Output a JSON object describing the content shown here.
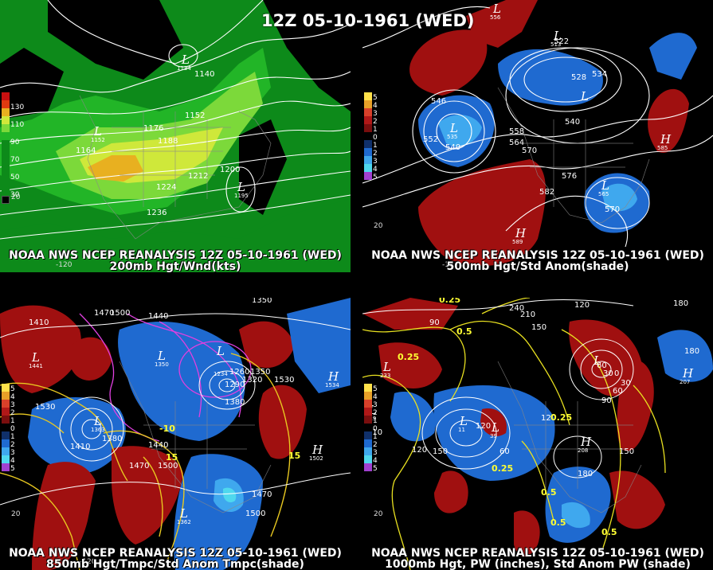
{
  "title": "12Z 05-10-1961 (WED)",
  "panels": [
    {
      "caption_line1": "NOAA NWS NCEP REANALYSIS 12Z 05-10-1961 (WED)",
      "caption_line2": "200mb Hgt/Wnd(kts)",
      "legend_labels": [
        "130",
        "110",
        "90",
        "70",
        "50",
        "30"
      ],
      "contour_labels": [
        "1140",
        "1152",
        "1164",
        "1176",
        "1188",
        "1200",
        "1212",
        "1224",
        "1236"
      ],
      "systems": [
        {
          "type": "L",
          "value": "1134"
        },
        {
          "type": "L",
          "value": "1152"
        },
        {
          "type": "L",
          "value": "1195"
        }
      ],
      "tick_labels": [
        "-120",
        "20"
      ]
    },
    {
      "caption_line1": "NOAA NWS NCEP REANALYSIS 12Z 05-10-1961 (WED)",
      "caption_line2": "500mb Hgt/Std Anom(shade)",
      "legend_labels": [
        "5",
        "4",
        "3",
        "2",
        "1",
        "0",
        "1",
        "2",
        "3",
        "4",
        "5"
      ],
      "contour_labels": [
        "522",
        "528",
        "534",
        "540",
        "546",
        "552",
        "540",
        "558",
        "564",
        "570",
        "576",
        "582",
        "570"
      ],
      "systems": [
        {
          "type": "L",
          "value": "556"
        },
        {
          "type": "L",
          "value": "513"
        },
        {
          "type": "L",
          "value": "522"
        },
        {
          "type": "L",
          "value": "535"
        },
        {
          "type": "H",
          "value": "585"
        },
        {
          "type": "L",
          "value": "565"
        },
        {
          "type": "H",
          "value": "589"
        }
      ],
      "tick_labels": [
        "-120",
        "20"
      ]
    },
    {
      "caption_line1": "NOAA NWS NCEP REANALYSIS 12Z 05-10-1961 (WED)",
      "caption_line2": "850mb Hgt/Tmpc/Std Anom Tmpc(shade)",
      "legend_labels": [
        "5",
        "4",
        "3",
        "2",
        "1",
        "0",
        "1",
        "2",
        "3",
        "4",
        "5"
      ],
      "contour_labels": [
        "1410",
        "1470",
        "1500",
        "1440",
        "1350",
        "1290",
        "1260",
        "1350",
        "1320",
        "1380",
        "1530",
        "1380",
        "1410",
        "1440",
        "1470",
        "1500",
        "1530",
        "1470",
        "1500"
      ],
      "systems": [
        {
          "type": "L",
          "value": "1441"
        },
        {
          "type": "L",
          "value": "1350"
        },
        {
          "type": "L",
          "value": "1234"
        },
        {
          "type": "H",
          "value": "1534"
        },
        {
          "type": "H",
          "value": "1502"
        },
        {
          "type": "L",
          "value": "1363"
        },
        {
          "type": "L",
          "value": "1362"
        }
      ],
      "yellow_labels": [
        "-10",
        "15",
        "15"
      ],
      "tick_labels": [
        "-120",
        "20"
      ]
    },
    {
      "caption_line1": "NOAA NWS NCEP REANALYSIS 12Z 05-10-1961 (WED)",
      "caption_line2": "1000mb Hgt, PW (inches), Std Anom PW (shade)",
      "legend_labels": [
        "5",
        "4",
        "3",
        "2",
        "1",
        "0",
        "1",
        "2",
        "3",
        "4",
        "5"
      ],
      "contour_labels": [
        "240",
        "210",
        "150",
        "120",
        "90",
        "60",
        "30",
        "0",
        "30",
        "60",
        "90",
        "120",
        "180",
        "150",
        "210",
        "120",
        "150",
        "180",
        "60",
        "120",
        "180"
      ],
      "systems": [
        {
          "type": "L",
          "value": "233"
        },
        {
          "type": "L",
          "value": "219"
        },
        {
          "type": "L",
          "value": "11"
        },
        {
          "type": "L",
          "value": "39"
        },
        {
          "type": "H",
          "value": "208"
        },
        {
          "type": "H",
          "value": "207"
        },
        {
          "type": "L",
          "value": "25"
        }
      ],
      "yellow_labels": [
        "0.25",
        "0.5",
        "0.25",
        "0.25",
        "0.5",
        "0.25",
        "0.5",
        "0.5"
      ],
      "tick_labels": [
        "20"
      ]
    }
  ],
  "colors": {
    "wind_30": "#0d8a1a",
    "wind_50": "#22b527",
    "wind_70": "#7cd93a",
    "wind_90": "#cfe83a",
    "wind_110": "#e8b020",
    "anom_pos": "#a01010",
    "anom_neg": "#1f6ad0",
    "anom_neg_strong": "#3fa8ee",
    "contour": "#ffffff",
    "temp_cold": "#e040e0",
    "temp_warm": "#e8c820"
  }
}
